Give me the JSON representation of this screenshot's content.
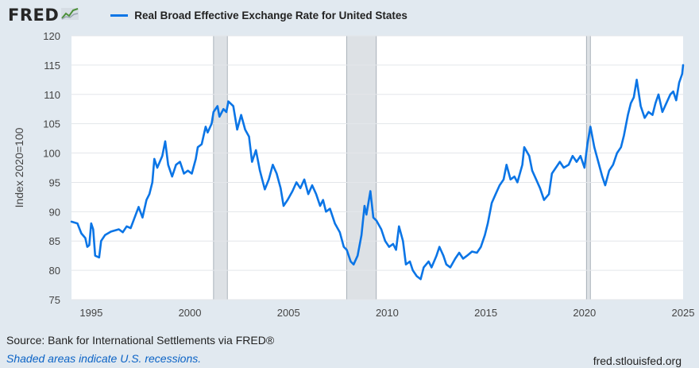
{
  "header": {
    "logo": "FRED",
    "legend_label": "Real Broad Effective Exchange Rate for United States"
  },
  "footer": {
    "source": "Source: Bank for International Settlements via FRED®",
    "note": "Shaded areas indicate U.S. recessions.",
    "url": "fred.stlouisfed.org"
  },
  "colors": {
    "line": "#0b75e6",
    "recession": "#dde1e5",
    "background": "#e1e9f0",
    "plot": "#ffffff"
  },
  "chart_data": {
    "type": "line",
    "title": "Real Broad Effective Exchange Rate for United States",
    "xlabel": "",
    "ylabel": "Index 2020=100",
    "xlim": [
      1994.0,
      2025.0
    ],
    "ylim": [
      75,
      120
    ],
    "x_ticks": [
      "1995",
      "2000",
      "2005",
      "2010",
      "2015",
      "2020",
      "2025"
    ],
    "y_ticks": [
      "75",
      "80",
      "85",
      "90",
      "95",
      "100",
      "105",
      "110",
      "115",
      "120"
    ],
    "recessions": [
      [
        2001.2,
        2001.9
      ],
      [
        2007.95,
        2009.45
      ],
      [
        2020.1,
        2020.3
      ]
    ],
    "grid": "horizontal",
    "series": [
      {
        "name": "Real Broad Effective Exchange Rate for United States",
        "points": [
          [
            1994.0,
            88.3
          ],
          [
            1994.3,
            88.0
          ],
          [
            1994.5,
            86.3
          ],
          [
            1994.7,
            85.5
          ],
          [
            1994.8,
            84.0
          ],
          [
            1994.9,
            84.3
          ],
          [
            1995.0,
            88.0
          ],
          [
            1995.1,
            87.0
          ],
          [
            1995.2,
            82.5
          ],
          [
            1995.4,
            82.2
          ],
          [
            1995.5,
            85.0
          ],
          [
            1995.7,
            86.0
          ],
          [
            1996.0,
            86.6
          ],
          [
            1996.4,
            87.0
          ],
          [
            1996.6,
            86.5
          ],
          [
            1996.8,
            87.5
          ],
          [
            1997.0,
            87.2
          ],
          [
            1997.2,
            89.0
          ],
          [
            1997.4,
            90.8
          ],
          [
            1997.6,
            89.0
          ],
          [
            1997.8,
            92.0
          ],
          [
            1997.95,
            93.0
          ],
          [
            1998.1,
            95.0
          ],
          [
            1998.2,
            99.0
          ],
          [
            1998.35,
            97.5
          ],
          [
            1998.6,
            99.5
          ],
          [
            1998.75,
            102.0
          ],
          [
            1998.9,
            98.0
          ],
          [
            1999.1,
            96.0
          ],
          [
            1999.3,
            98.0
          ],
          [
            1999.5,
            98.5
          ],
          [
            1999.7,
            96.5
          ],
          [
            1999.9,
            97.0
          ],
          [
            2000.1,
            96.5
          ],
          [
            2000.3,
            99.0
          ],
          [
            2000.4,
            101.0
          ],
          [
            2000.6,
            101.5
          ],
          [
            2000.8,
            104.5
          ],
          [
            2000.9,
            103.5
          ],
          [
            2001.1,
            105.0
          ],
          [
            2001.2,
            107.0
          ],
          [
            2001.4,
            108.0
          ],
          [
            2001.5,
            106.2
          ],
          [
            2001.7,
            107.5
          ],
          [
            2001.85,
            107.0
          ],
          [
            2001.95,
            108.8
          ],
          [
            2002.2,
            108.0
          ],
          [
            2002.4,
            104.0
          ],
          [
            2002.6,
            106.5
          ],
          [
            2002.8,
            104.0
          ],
          [
            2003.0,
            102.8
          ],
          [
            2003.15,
            98.5
          ],
          [
            2003.35,
            100.5
          ],
          [
            2003.55,
            97.0
          ],
          [
            2003.8,
            93.8
          ],
          [
            2004.0,
            95.5
          ],
          [
            2004.2,
            98.0
          ],
          [
            2004.4,
            96.5
          ],
          [
            2004.6,
            94.0
          ],
          [
            2004.75,
            91.0
          ],
          [
            2004.95,
            92.0
          ],
          [
            2005.2,
            93.5
          ],
          [
            2005.4,
            95.0
          ],
          [
            2005.6,
            94.0
          ],
          [
            2005.8,
            95.5
          ],
          [
            2006.0,
            93.0
          ],
          [
            2006.2,
            94.5
          ],
          [
            2006.4,
            93.0
          ],
          [
            2006.6,
            91.0
          ],
          [
            2006.75,
            92.0
          ],
          [
            2006.9,
            90.0
          ],
          [
            2007.1,
            90.5
          ],
          [
            2007.35,
            88.0
          ],
          [
            2007.6,
            86.5
          ],
          [
            2007.8,
            84.0
          ],
          [
            2007.95,
            83.5
          ],
          [
            2008.15,
            81.5
          ],
          [
            2008.3,
            81.0
          ],
          [
            2008.5,
            82.5
          ],
          [
            2008.7,
            86.0
          ],
          [
            2008.85,
            91.0
          ],
          [
            2008.95,
            89.5
          ],
          [
            2009.15,
            93.5
          ],
          [
            2009.3,
            89.0
          ],
          [
            2009.45,
            88.5
          ],
          [
            2009.7,
            87.0
          ],
          [
            2009.9,
            85.0
          ],
          [
            2010.1,
            84.0
          ],
          [
            2010.3,
            84.5
          ],
          [
            2010.45,
            83.5
          ],
          [
            2010.6,
            87.5
          ],
          [
            2010.8,
            85.0
          ],
          [
            2010.95,
            81.0
          ],
          [
            2011.15,
            81.5
          ],
          [
            2011.3,
            80.0
          ],
          [
            2011.5,
            79.0
          ],
          [
            2011.7,
            78.5
          ],
          [
            2011.85,
            80.5
          ],
          [
            2012.1,
            81.5
          ],
          [
            2012.25,
            80.5
          ],
          [
            2012.5,
            82.5
          ],
          [
            2012.65,
            84.0
          ],
          [
            2012.85,
            82.5
          ],
          [
            2013.0,
            81.0
          ],
          [
            2013.2,
            80.5
          ],
          [
            2013.45,
            82.0
          ],
          [
            2013.65,
            83.0
          ],
          [
            2013.85,
            82.0
          ],
          [
            2014.05,
            82.5
          ],
          [
            2014.3,
            83.2
          ],
          [
            2014.55,
            83.0
          ],
          [
            2014.75,
            84.0
          ],
          [
            2014.95,
            86.0
          ],
          [
            2015.1,
            88.0
          ],
          [
            2015.3,
            91.5
          ],
          [
            2015.5,
            93.0
          ],
          [
            2015.7,
            94.5
          ],
          [
            2015.9,
            95.5
          ],
          [
            2016.05,
            98.0
          ],
          [
            2016.25,
            95.5
          ],
          [
            2016.45,
            96.0
          ],
          [
            2016.6,
            95.0
          ],
          [
            2016.85,
            98.0
          ],
          [
            2016.95,
            101.0
          ],
          [
            2017.2,
            99.5
          ],
          [
            2017.35,
            97.0
          ],
          [
            2017.55,
            95.5
          ],
          [
            2017.75,
            94.0
          ],
          [
            2017.95,
            92.0
          ],
          [
            2018.2,
            93.0
          ],
          [
            2018.35,
            96.5
          ],
          [
            2018.55,
            97.5
          ],
          [
            2018.75,
            98.5
          ],
          [
            2018.95,
            97.5
          ],
          [
            2019.2,
            98.0
          ],
          [
            2019.4,
            99.5
          ],
          [
            2019.6,
            98.5
          ],
          [
            2019.8,
            99.5
          ],
          [
            2020.0,
            97.5
          ],
          [
            2020.15,
            101.5
          ],
          [
            2020.3,
            104.5
          ],
          [
            2020.5,
            101.0
          ],
          [
            2020.7,
            98.5
          ],
          [
            2020.9,
            96.0
          ],
          [
            2021.05,
            94.5
          ],
          [
            2021.25,
            97.0
          ],
          [
            2021.45,
            98.0
          ],
          [
            2021.65,
            100.0
          ],
          [
            2021.85,
            101.0
          ],
          [
            2022.0,
            103.0
          ],
          [
            2022.2,
            106.5
          ],
          [
            2022.35,
            108.5
          ],
          [
            2022.5,
            109.5
          ],
          [
            2022.65,
            112.5
          ],
          [
            2022.85,
            108.0
          ],
          [
            2023.05,
            106.0
          ],
          [
            2023.25,
            107.0
          ],
          [
            2023.45,
            106.5
          ],
          [
            2023.6,
            108.5
          ],
          [
            2023.75,
            110.0
          ],
          [
            2023.95,
            107.0
          ],
          [
            2024.15,
            108.5
          ],
          [
            2024.35,
            110.0
          ],
          [
            2024.5,
            110.5
          ],
          [
            2024.65,
            109.0
          ],
          [
            2024.8,
            112.0
          ],
          [
            2024.95,
            113.5
          ],
          [
            2025.0,
            115.0
          ]
        ]
      }
    ]
  }
}
